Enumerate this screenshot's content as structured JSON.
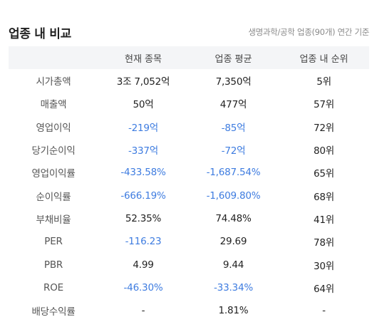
{
  "header": {
    "title": "업종 내 비교",
    "subtitle": "생명과학/공학 업종(90개) 연간 기준"
  },
  "table": {
    "columns": [
      "",
      "현재 종목",
      "업종 평균",
      "업종 내 순위"
    ],
    "rows": [
      {
        "label": "시가총액",
        "current": "3조 7,052억",
        "average": "7,350억",
        "rank": "5위"
      },
      {
        "label": "매출액",
        "current": "50억",
        "average": "477억",
        "rank": "57위"
      },
      {
        "label": "영업이익",
        "current": "-219억",
        "average": "-85억",
        "rank": "72위"
      },
      {
        "label": "당기순이익",
        "current": "-337억",
        "average": "-72억",
        "rank": "80위"
      },
      {
        "label": "영업이익률",
        "current": "-433.58%",
        "average": "-1,687.54%",
        "rank": "65위"
      },
      {
        "label": "순이익률",
        "current": "-666.19%",
        "average": "-1,609.80%",
        "rank": "68위"
      },
      {
        "label": "부채비율",
        "current": "52.35%",
        "average": "74.48%",
        "rank": "41위"
      },
      {
        "label": "PER",
        "current": "-116.23",
        "average": "29.69",
        "rank": "78위"
      },
      {
        "label": "PBR",
        "current": "4.99",
        "average": "9.44",
        "rank": "30위"
      },
      {
        "label": "ROE",
        "current": "-46.30%",
        "average": "-33.34%",
        "rank": "64위"
      },
      {
        "label": "배당수익률",
        "current": "-",
        "average": "1.81%",
        "rank": "-"
      }
    ]
  },
  "colors": {
    "negative": "#3e7ce0",
    "header_bg": "#f4f5f7",
    "text": "#222222",
    "muted": "#8a8a8a"
  }
}
